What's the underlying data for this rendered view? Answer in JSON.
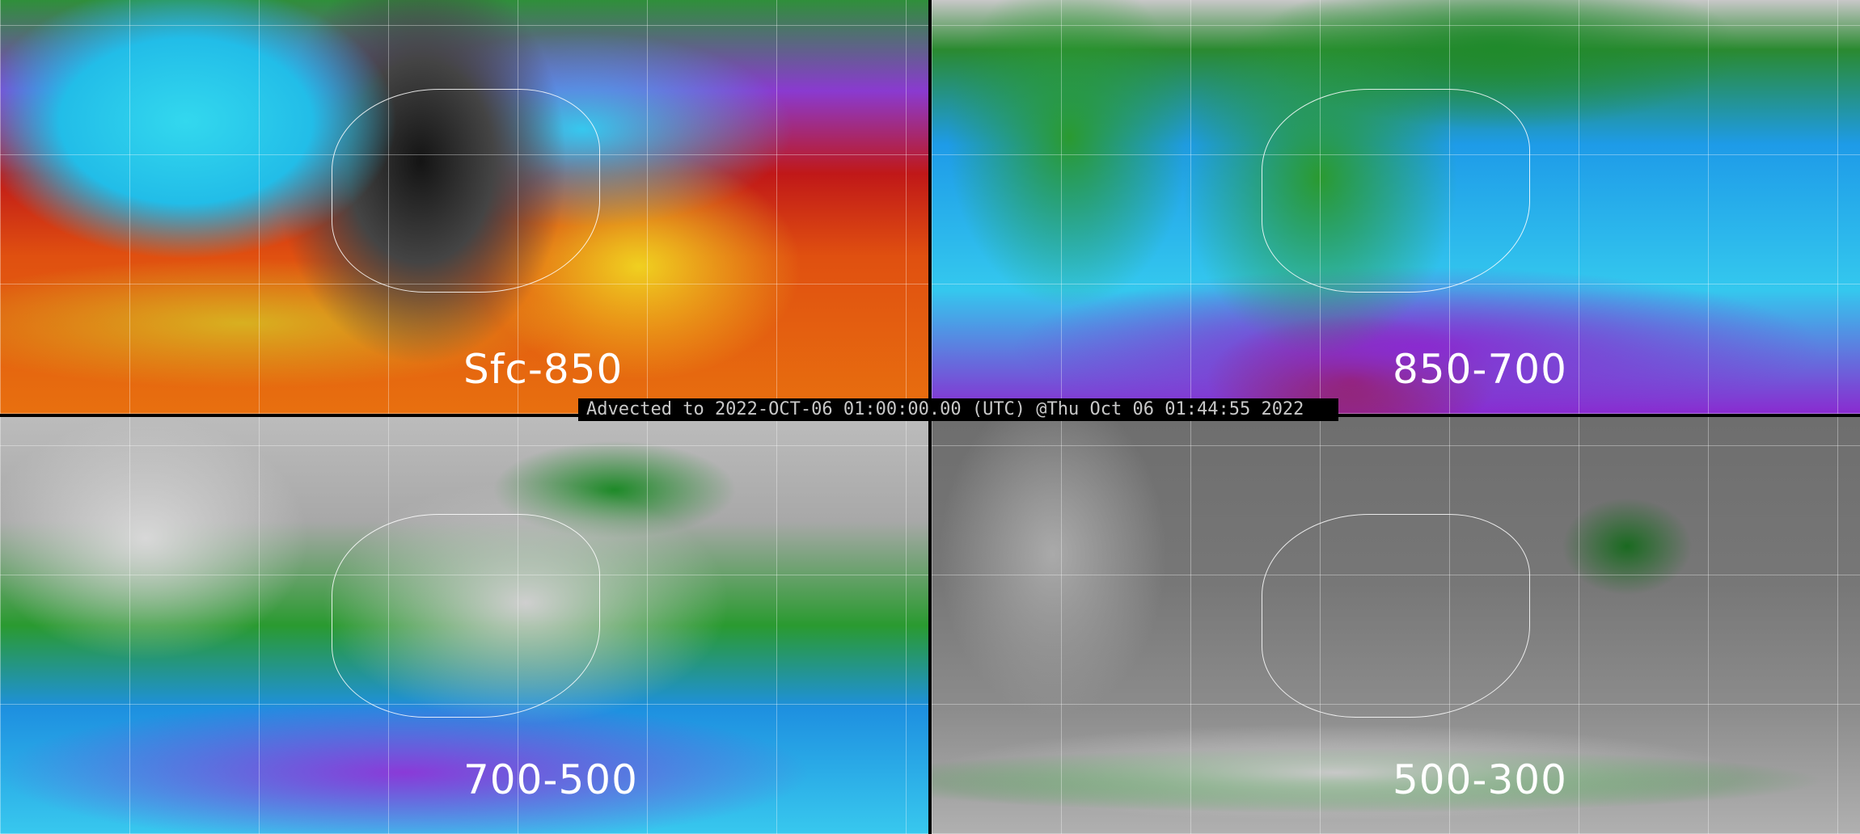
{
  "panels": [
    {
      "label": "Sfc-850"
    },
    {
      "label": "850-700"
    },
    {
      "label": "700-500"
    },
    {
      "label": "500-300"
    }
  ],
  "banner": {
    "text": "Advected to 2022-OCT-06 01:00:00.00 (UTC) @Thu Oct 06 01:44:55 2022"
  }
}
